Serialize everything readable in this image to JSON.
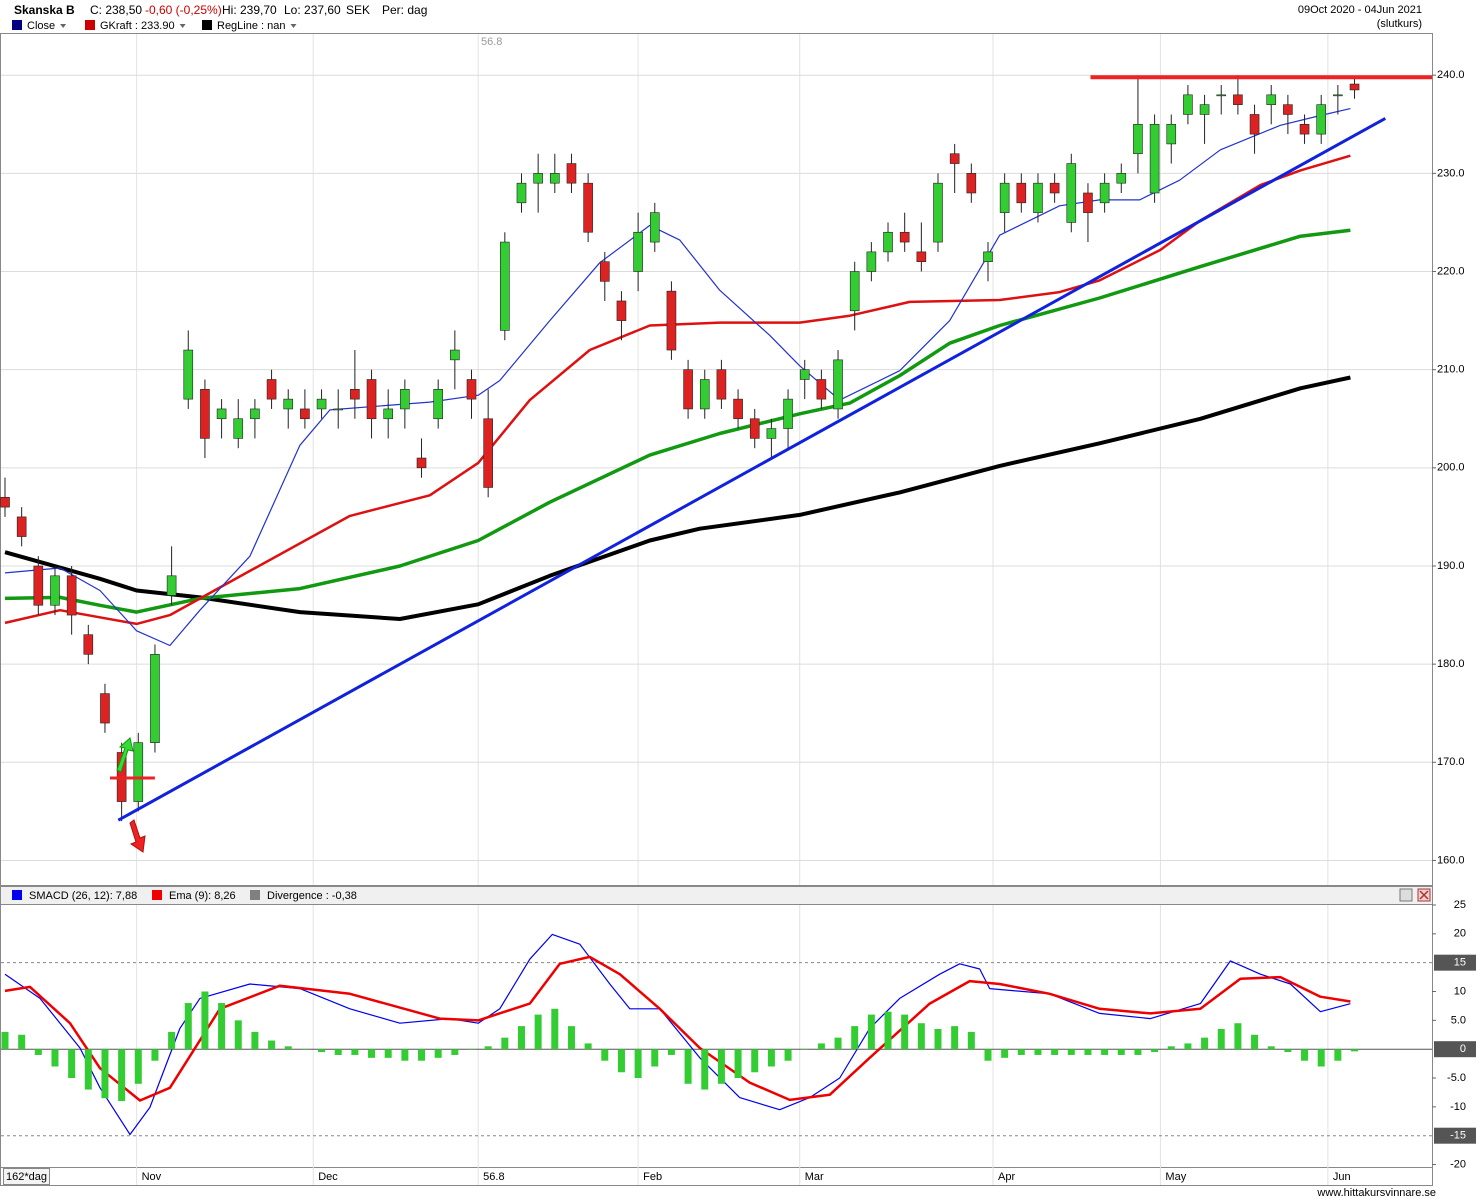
{
  "chart_data": [
    {
      "type": "candlestick",
      "title": "Skanska B",
      "info": [
        "C: 238,50",
        "-0,60 (-0,25%)",
        "Hi: 239,70",
        "Lo: 237,60",
        "SEK",
        "Per: dag"
      ],
      "date_range": "09Oct 2020 - 04Jun 2021",
      "price_type": "(slutkurs)",
      "period_label": "162*dag",
      "legend": [
        {
          "name": "Close",
          "color": "#000080"
        },
        {
          "name": "GKraft : 233.90",
          "color": "#cc0000"
        },
        {
          "name": "RegLine : nan",
          "color": "#000000"
        }
      ],
      "up_color": "#33cc33",
      "down_color": "#dd2222",
      "x": [
        0,
        2,
        4,
        6,
        8,
        10,
        12,
        14,
        16,
        18,
        20,
        22,
        24,
        26,
        28,
        30,
        32,
        34,
        36,
        38,
        40,
        42,
        44,
        46,
        48,
        50,
        52,
        54,
        56,
        58,
        60,
        62,
        64,
        66,
        68,
        70,
        72,
        74,
        76,
        78,
        80,
        82,
        84,
        86,
        88,
        90,
        92,
        94,
        96,
        98,
        100,
        102,
        104,
        106,
        108,
        110,
        112,
        114,
        116,
        118,
        120,
        122,
        124,
        126,
        128,
        130,
        132,
        134,
        136,
        138,
        140,
        142,
        144,
        146,
        148,
        150,
        152,
        154,
        156,
        158,
        160,
        162
      ],
      "open": [
        197,
        195,
        190,
        186,
        189,
        183,
        177,
        171,
        166,
        172,
        187,
        207,
        208,
        205,
        203,
        205,
        209,
        206,
        206,
        206,
        206,
        208,
        209,
        205,
        206,
        201,
        205,
        211,
        209,
        205,
        214,
        227,
        229,
        229,
        231,
        229,
        221,
        217,
        220,
        223,
        218,
        210,
        206,
        210,
        207,
        205,
        203,
        204,
        209,
        209,
        206,
        216,
        220,
        222,
        224,
        222,
        223,
        232,
        230,
        221,
        226,
        229,
        226,
        229,
        225,
        228,
        227,
        229,
        232,
        228,
        233,
        236,
        236,
        238,
        238,
        236,
        237,
        237,
        235,
        234,
        238,
        239.1
      ],
      "high": [
        199,
        196,
        191,
        190,
        190,
        184,
        178,
        172,
        173,
        182,
        192,
        214,
        209,
        207,
        207,
        207,
        210,
        208,
        208,
        208,
        208,
        212,
        210,
        208,
        209,
        203,
        209,
        214,
        210,
        208,
        224,
        230,
        232,
        232,
        232,
        230,
        222,
        218,
        226,
        227,
        219,
        211,
        210,
        211,
        208,
        206,
        205,
        208,
        211,
        210,
        212,
        221,
        223,
        225,
        226,
        225,
        230,
        233,
        231,
        223,
        230,
        230,
        230,
        230,
        232,
        229,
        230,
        231,
        240,
        236,
        236,
        239,
        238,
        239,
        240,
        237,
        239,
        238,
        236,
        238,
        239,
        239.7
      ],
      "low": [
        195,
        192,
        185,
        185,
        183,
        180,
        173,
        164,
        165,
        171,
        186,
        206,
        201,
        203,
        202,
        203,
        206,
        204,
        204,
        205,
        204,
        205,
        203,
        203,
        204,
        199,
        204,
        208,
        205,
        197,
        213,
        226,
        226,
        228,
        228,
        223,
        217,
        213,
        218,
        222,
        211,
        205,
        205,
        206,
        204,
        202,
        201,
        202,
        207,
        206,
        205,
        214,
        219,
        221,
        222,
        220,
        222,
        228,
        227,
        219,
        224,
        226,
        225,
        227,
        224,
        223,
        226,
        228,
        230,
        227,
        231,
        235,
        233,
        236,
        236,
        232,
        235,
        234,
        233,
        233,
        236,
        237.6
      ],
      "close": [
        196,
        193,
        186,
        189,
        185,
        181,
        174,
        166,
        172,
        181,
        189,
        212,
        203,
        206,
        205,
        206,
        207,
        207,
        205,
        207,
        206,
        207,
        205,
        206,
        208,
        200,
        208,
        212,
        207,
        198,
        223,
        229,
        230,
        230,
        229,
        224,
        219,
        215,
        224,
        226,
        212,
        206,
        209,
        207,
        205,
        203,
        204,
        207,
        210,
        207,
        211,
        220,
        222,
        224,
        223,
        221,
        229,
        231,
        228,
        222,
        229,
        227,
        229,
        228,
        231,
        226,
        229,
        230,
        235,
        235,
        235,
        238,
        237,
        238,
        237,
        234,
        238,
        236,
        234,
        237,
        238,
        238.5
      ],
      "lines": [
        {
          "color": "#000000",
          "width": 4,
          "x": [
            0,
            11.4,
            15.8,
            23.4,
            35.4,
            47.4,
            56.8,
            65.4,
            77.4,
            83.4,
            95.4,
            107.4,
            119.4,
            131.4,
            143.5,
            155.5,
            161.5
          ],
          "values": [
            191.4,
            188.7,
            187.5,
            186.8,
            185.3,
            184.6,
            186.1,
            189,
            192.6,
            193.8,
            195.2,
            197.5,
            200.2,
            202.5,
            205,
            208.1,
            209.2
          ]
        },
        {
          "color": "#119911",
          "width": 3.5,
          "x": [
            0,
            6.6,
            11.4,
            15.8,
            23.4,
            35.4,
            47.4,
            56.8,
            65.4,
            77.4,
            85.8,
            95.4,
            101.4,
            107.4,
            113.4,
            119.4,
            131.4,
            143.5,
            155.5,
            161.5
          ],
          "values": [
            186.7,
            186.8,
            186,
            185.3,
            186.7,
            187.7,
            190,
            192.6,
            196.5,
            201.3,
            203.5,
            205.5,
            206.6,
            209.4,
            212.7,
            214.5,
            217.3,
            220.5,
            223.6,
            224.2
          ]
        },
        {
          "color": "#dd1111",
          "width": 2.5,
          "x": [
            0,
            6.6,
            15.8,
            19.8,
            29.4,
            41.4,
            51,
            56.8,
            63,
            70.2,
            77.4,
            85.8,
            95.4,
            101.4,
            108.6,
            119.4,
            126.6,
            131.4,
            138.7,
            143.5,
            150.7,
            155.5,
            161.5
          ],
          "values": [
            184.2,
            185.5,
            184.1,
            185,
            189.5,
            195.1,
            197.2,
            200.5,
            206.9,
            212,
            214.5,
            214.8,
            214.8,
            215.5,
            216.9,
            217.1,
            217.9,
            219.1,
            222.2,
            225.2,
            228.8,
            230.3,
            231.8
          ]
        },
        {
          "color": "#2233cc",
          "width": 1.2,
          "x": [
            0,
            6.6,
            11.4,
            15.8,
            19.8,
            23.4,
            29.4,
            35.4,
            39,
            51,
            56.8,
            59.4,
            65.4,
            71.4,
            77.4,
            81,
            85.8,
            91.8,
            95.4,
            100.2,
            107.4,
            113.4,
            119.4,
            126.6,
            131.4,
            136.2,
            141,
            145.9,
            153.1,
            157.9,
            161.5
          ],
          "values": [
            189.3,
            189.8,
            187.5,
            183.4,
            181.9,
            185.5,
            191,
            202.3,
            205.9,
            206.7,
            207.4,
            208.9,
            215,
            220.9,
            224.7,
            223.2,
            218.1,
            213.5,
            210.4,
            206.9,
            209.9,
            215,
            223.7,
            226.7,
            227.3,
            227.3,
            229.3,
            232.4,
            234.9,
            235.9,
            236.6
          ]
        }
      ],
      "trendlines": [
        {
          "color": "#1122dd",
          "width": 3,
          "x": [
            13.6,
            165.7
          ],
          "values": [
            164.1,
            235.6
          ]
        },
        {
          "color": "#ee2222",
          "width": 4,
          "x": [
            130.3,
            171.3
          ],
          "values": [
            239.8,
            239.8
          ]
        },
        {
          "color": "#ee2222",
          "width": 3,
          "x": [
            12.6,
            18
          ],
          "values": [
            168.4,
            168.4
          ]
        }
      ],
      "xlim": [
        -0.6,
        171.3
      ],
      "xticks": [
        {
          "value": 15.8,
          "label": "Nov"
        },
        {
          "value": 37,
          "label": "Dec"
        },
        56.8,
        {
          "value": 76,
          "label": "Feb"
        },
        {
          "value": 95.4,
          "label": "Mar"
        },
        {
          "value": 118.6,
          "label": "Apr"
        },
        {
          "value": 138.7,
          "label": "May"
        },
        {
          "value": 158.8,
          "label": "Jun"
        }
      ],
      "ylim": [
        157.5,
        244.3
      ],
      "yticks": [
        {
          "value": 160,
          "label": "160.0"
        },
        {
          "value": 170,
          "label": "170.0"
        },
        {
          "value": 180,
          "label": "180.0"
        },
        {
          "value": 190,
          "label": "190.0"
        },
        {
          "value": 200,
          "label": "200.0"
        },
        {
          "value": 210,
          "label": "210.0"
        },
        {
          "value": 220,
          "label": "220.0"
        },
        {
          "value": 230,
          "label": "230.0"
        },
        {
          "value": 240,
          "label": "240.0"
        }
      ],
      "grid": true
    },
    {
      "type": "macd",
      "series": [
        {
          "name": "SMACD (26, 12): 7,88",
          "color": "#0000ee",
          "width": 1.2,
          "x": [
            0,
            4.2,
            9,
            11.4,
            15,
            17.4,
            21,
            23.4,
            29.4,
            35.4,
            41.4,
            47.4,
            53.4,
            56.8,
            59.4,
            63,
            65.7,
            69,
            72.6,
            75,
            78.6,
            83.4,
            88.2,
            93,
            96.6,
            100.2,
            103.8,
            107.4,
            112.2,
            114.6,
            117,
            118.2,
            125.4,
            131.4,
            137.5,
            143.5,
            147.1,
            150.7,
            154.3,
            157.9,
            161.5
          ],
          "values": [
            13,
            8.8,
            0.2,
            -6.7,
            -14.8,
            -10.1,
            3.6,
            8.8,
            11.3,
            10.5,
            7,
            4.5,
            5.3,
            4.5,
            7,
            15.6,
            19.9,
            18.2,
            11.3,
            7,
            7,
            -1.5,
            -8.4,
            -10.5,
            -8.4,
            -5,
            3.6,
            8.8,
            13,
            14.8,
            13.9,
            10.5,
            9.6,
            6.2,
            5.3,
            7.9,
            15.3,
            13,
            11.3,
            6.5,
            7.88
          ]
        },
        {
          "name": "Ema (9): 8,26",
          "color": "#ee0000",
          "width": 2.5,
          "x": [
            0,
            3,
            7.8,
            11.4,
            16.2,
            19.8,
            25.8,
            33,
            41.4,
            52.2,
            56.8,
            63,
            66.6,
            70.2,
            73.8,
            78.6,
            83.4,
            89.4,
            94.2,
            99,
            103.8,
            111,
            115.8,
            119.4,
            125.4,
            131.4,
            137.5,
            143.5,
            148.3,
            153.1,
            157.9,
            161.5
          ],
          "values": [
            10.1,
            10.8,
            4.5,
            -3.3,
            -8.9,
            -6.7,
            7,
            11,
            9.6,
            5.3,
            5,
            7.9,
            14.8,
            16,
            13,
            7,
            0.2,
            -5.8,
            -8.8,
            -7.9,
            -1.5,
            7.9,
            11.8,
            11.3,
            9.6,
            7,
            6.2,
            7,
            12.2,
            12.5,
            9.1,
            8.26
          ]
        },
        {
          "name": "Divergence : -0,38",
          "type": "bar",
          "color": "#33cc33",
          "legend_color": "#808080",
          "x": [
            0,
            2,
            4,
            6,
            8,
            10,
            12,
            14,
            16,
            18,
            20,
            22,
            24,
            26,
            28,
            30,
            32,
            34,
            36,
            38,
            40,
            42,
            44,
            46,
            48,
            50,
            52,
            54,
            56,
            58,
            60,
            62,
            64,
            66,
            68,
            70,
            72,
            74,
            76,
            78,
            80,
            82,
            84,
            86,
            88,
            90,
            92,
            94,
            96,
            98,
            100,
            102,
            104,
            106,
            108,
            110,
            112,
            114,
            116,
            118,
            120,
            122,
            124,
            126,
            128,
            130,
            132,
            134,
            136,
            138,
            140,
            142,
            144,
            146,
            148,
            150,
            152,
            154,
            156,
            158,
            160,
            162
          ],
          "values": [
            3,
            2.5,
            -1,
            -3,
            -5,
            -7,
            -8.5,
            -9,
            -6,
            -2,
            3,
            8,
            10,
            8,
            5,
            3,
            1.5,
            0.5,
            0,
            -0.5,
            -1,
            -1,
            -1.5,
            -1.5,
            -2,
            -2,
            -1.5,
            -1,
            0,
            0.5,
            2,
            4,
            6,
            7,
            4,
            1,
            -2,
            -4,
            -5,
            -3,
            -1,
            -6,
            -7,
            -6,
            -5,
            -4,
            -3,
            -2,
            0,
            1,
            2,
            4,
            6,
            6.5,
            6,
            4.5,
            3.5,
            4,
            3,
            -2,
            -1.5,
            -1,
            -1,
            -1,
            -1,
            -1,
            -1,
            -1,
            -1,
            -0.5,
            0.5,
            1,
            2,
            3.5,
            4.5,
            2.5,
            0.5,
            -0.5,
            -2,
            -3,
            -2,
            -0.38
          ]
        }
      ],
      "ylim": [
        -20.6,
        25
      ],
      "yticks": [
        25,
        20,
        10,
        {
          "value": 5,
          "label": "5.0"
        },
        {
          "value": -5,
          "label": "-5.0"
        },
        -10,
        -20
      ],
      "reference_lines": [
        15,
        0,
        -15
      ]
    }
  ],
  "source": "www.hittakursvinnare.se"
}
